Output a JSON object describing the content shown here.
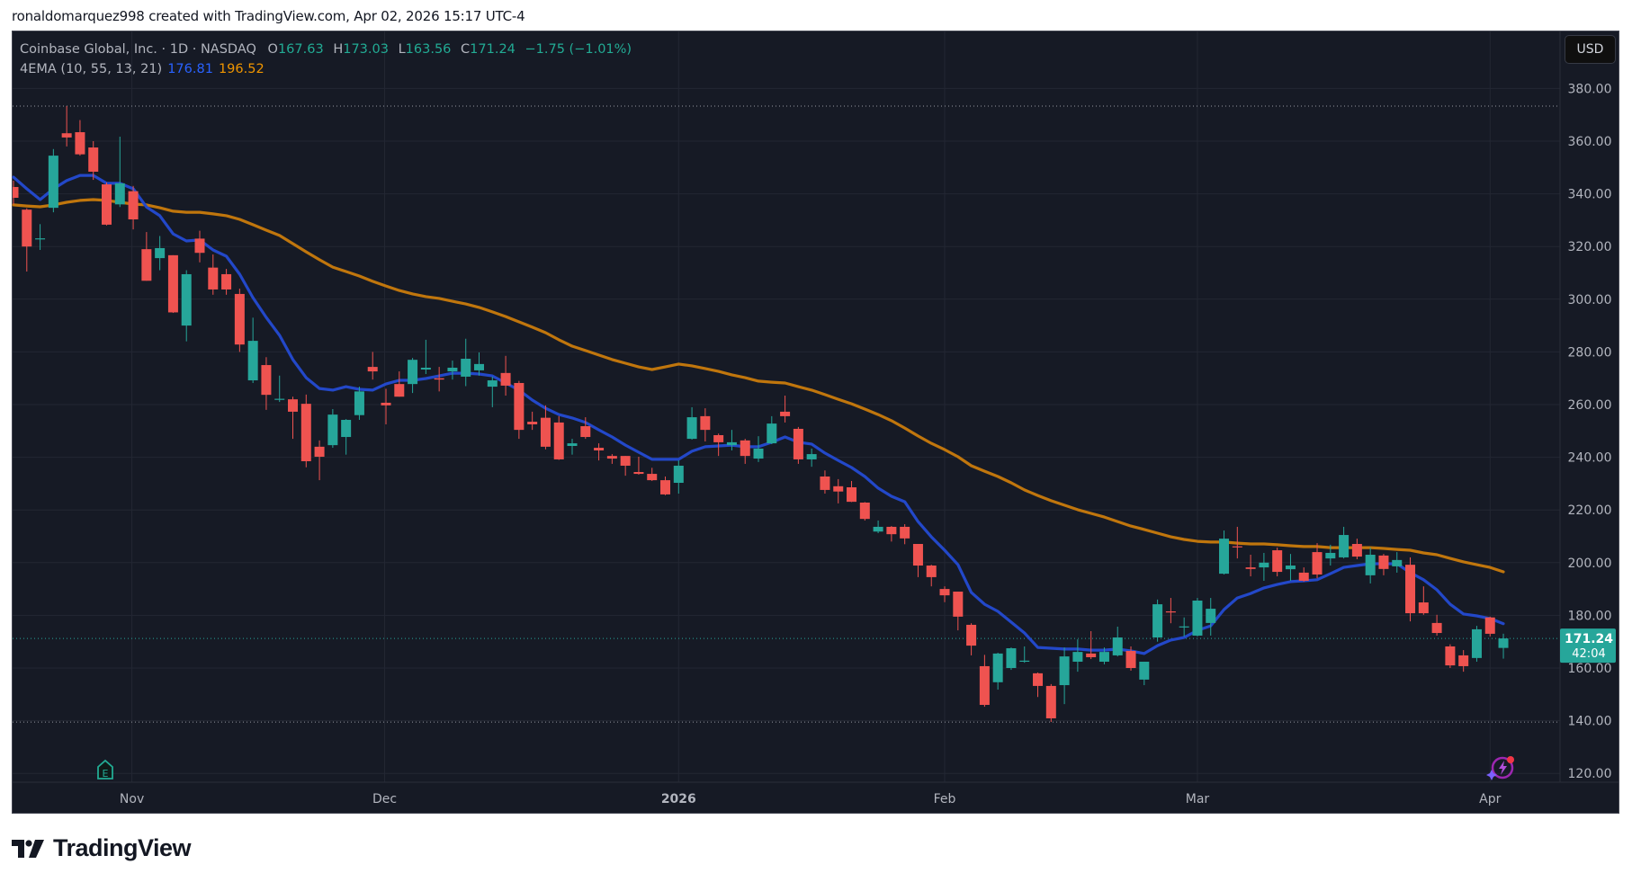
{
  "attribution": "ronaldomarquez998 created with TradingView.com, Apr 02, 2026 15:17 UTC-4",
  "legend": {
    "symbol": "Coinbase Global, Inc. · 1D · NASDAQ",
    "open_label": "O",
    "open": "167.63",
    "high_label": "H",
    "high": "173.03",
    "low_label": "L",
    "low": "163.56",
    "close_label": "C",
    "close": "171.24",
    "change": "−1.75 (−1.01%)",
    "indicator": "4EMA (10, 55, 13, 21)",
    "ema_fast_value": "176.81",
    "ema_slow_value": "196.52"
  },
  "currency_button": "USD",
  "last_price_label": {
    "price": "171.24",
    "countdown": "42:04"
  },
  "logo_text": "TradingView",
  "colors": {
    "background": "#161a25",
    "grid": "#232733",
    "up": "#26a69a",
    "down": "#ef5350",
    "ema_fast": "#2348c9",
    "ema_slow": "#c0760d",
    "axis_text": "#b2b5be",
    "last_price_bg": "#26a69a"
  },
  "chart_data": {
    "type": "candlestick",
    "title": "Coinbase Global, Inc. · 1D · NASDAQ",
    "xlabel": "",
    "ylabel": "USD",
    "ylim": [
      114,
      398
    ],
    "grid": true,
    "y_ticks": [
      120,
      140,
      160,
      180,
      200,
      220,
      240,
      260,
      280,
      300,
      320,
      340,
      360,
      380
    ],
    "x_ticks": [
      {
        "label": "Nov",
        "index": 8.9,
        "bold": false
      },
      {
        "label": "Dec",
        "index": 27.9,
        "bold": false
      },
      {
        "label": "2026",
        "index": 50,
        "bold": true
      },
      {
        "label": "Feb",
        "index": 70,
        "bold": false
      },
      {
        "label": "Mar",
        "index": 89,
        "bold": false
      },
      {
        "label": "Apr",
        "index": 111,
        "bold": false
      }
    ],
    "high_marker": 373.3,
    "low_marker": 139.5,
    "last_price": 171.24,
    "legend": [
      "EMA 10 (blue) 176.81",
      "EMA 55 (orange) 196.52"
    ],
    "candles": [
      [
        342.6,
        345,
        336,
        338.5
      ],
      [
        334,
        334.5,
        310.5,
        320
      ],
      [
        323,
        328.5,
        318.7,
        323.1
      ],
      [
        334.7,
        357,
        333,
        354.5
      ],
      [
        363,
        373.3,
        358,
        361.4
      ],
      [
        363.4,
        368,
        354.5,
        355
      ],
      [
        357.6,
        360,
        345.3,
        348.4
      ],
      [
        343.6,
        344.3,
        328,
        328.3
      ],
      [
        336,
        361.7,
        335,
        344
      ],
      [
        341,
        343,
        326.5,
        330.3
      ],
      [
        319,
        325.5,
        307,
        307
      ],
      [
        315.6,
        324,
        311,
        319.4
      ],
      [
        316.7,
        316.7,
        294.8,
        295
      ],
      [
        290,
        311,
        284,
        309.5
      ],
      [
        323,
        326,
        314,
        317.6
      ],
      [
        312,
        317,
        301.7,
        303.7
      ],
      [
        309.5,
        311.5,
        301.7,
        303.7
      ],
      [
        302,
        304,
        280,
        282.8
      ],
      [
        269.2,
        293,
        268.2,
        284.2
      ],
      [
        275,
        278,
        258,
        263.7
      ],
      [
        262,
        271,
        261,
        262.2
      ],
      [
        262,
        263,
        247,
        257.3
      ],
      [
        260.3,
        263.8,
        236.2,
        238.5
      ],
      [
        244,
        246.4,
        231.3,
        240.2
      ],
      [
        244.6,
        258.3,
        243.6,
        256.2
      ],
      [
        247.7,
        254.5,
        241,
        254.2
      ],
      [
        256,
        266.8,
        254.2,
        265
      ],
      [
        274.3,
        280,
        269.5,
        272.6
      ],
      [
        260.7,
        266,
        252.5,
        259.7
      ],
      [
        267.8,
        272.6,
        263,
        263
      ],
      [
        267.8,
        277.7,
        264.4,
        277
      ],
      [
        273.3,
        284.6,
        271.6,
        274
      ],
      [
        270,
        274.3,
        265,
        269.5
      ],
      [
        272.6,
        276.7,
        269.5,
        274
      ],
      [
        270.6,
        285,
        267,
        277.4
      ],
      [
        273,
        279.8,
        271,
        275.4
      ],
      [
        266.8,
        270.6,
        259,
        269.2
      ],
      [
        272,
        278.5,
        263.4,
        267.2
      ],
      [
        268.2,
        269,
        247,
        250.4
      ],
      [
        253.5,
        257.3,
        250.4,
        252.5
      ],
      [
        255,
        259.7,
        243,
        244
      ],
      [
        253.2,
        255.6,
        239,
        239.2
      ],
      [
        244.3,
        247,
        241,
        245.3
      ],
      [
        251.8,
        255.2,
        247,
        247.7
      ],
      [
        243.6,
        245.3,
        238.8,
        242.6
      ],
      [
        240.5,
        241.2,
        237.5,
        239.5
      ],
      [
        240.5,
        240.5,
        233,
        236.8
      ],
      [
        234.4,
        240.2,
        233.4,
        233.7
      ],
      [
        233.7,
        236,
        231,
        231.3
      ],
      [
        231.3,
        232.7,
        225.6,
        225.9
      ],
      [
        230.3,
        238.8,
        226.2,
        236.8
      ],
      [
        247,
        259,
        246.7,
        255.2
      ],
      [
        255.6,
        258.6,
        246,
        250.4
      ],
      [
        248.4,
        249,
        240.5,
        245.7
      ],
      [
        244.6,
        250.4,
        242.6,
        245.7
      ],
      [
        246.4,
        247,
        237.5,
        240.5
      ],
      [
        239.5,
        248,
        238.2,
        243.3
      ],
      [
        245.3,
        255.6,
        245,
        252.8
      ],
      [
        257.3,
        263.4,
        253.2,
        255.6
      ],
      [
        250.8,
        251.5,
        237.5,
        239.2
      ],
      [
        239.2,
        243.3,
        236.4,
        241.2
      ],
      [
        232.7,
        235,
        226.2,
        227.6
      ],
      [
        229,
        231.7,
        222.5,
        227
      ],
      [
        228.6,
        231,
        223,
        223.1
      ],
      [
        222.8,
        223,
        216,
        216.6
      ],
      [
        211.8,
        216,
        211.2,
        213.6
      ],
      [
        213.6,
        213.9,
        208,
        210.8
      ],
      [
        213.6,
        214.6,
        207,
        209.2
      ],
      [
        207.1,
        207.1,
        194.5,
        198.9
      ],
      [
        198.9,
        199.2,
        191,
        194.5
      ],
      [
        190,
        191,
        185,
        187.6
      ],
      [
        189,
        189,
        174.3,
        179.5
      ],
      [
        176.4,
        177,
        164.8,
        168.5
      ],
      [
        160.7,
        165,
        145.3,
        146
      ],
      [
        154.6,
        165.8,
        151.8,
        165.5
      ],
      [
        160,
        167.8,
        159.3,
        167.5
      ],
      [
        162.7,
        168.2,
        162,
        162.8
      ],
      [
        158,
        158.3,
        149,
        153.2
      ],
      [
        153.2,
        153.9,
        139.5,
        140.9
      ],
      [
        153.5,
        167.8,
        146.3,
        164.4
      ],
      [
        162.4,
        170.9,
        158.6,
        166.1
      ],
      [
        165.5,
        174,
        163.4,
        164.1
      ],
      [
        162.4,
        167.8,
        161.4,
        166.1
      ],
      [
        164.8,
        175.7,
        164.4,
        171.6
      ],
      [
        166.5,
        168.2,
        159,
        160
      ],
      [
        155.6,
        162.4,
        153.5,
        162.4
      ],
      [
        171.6,
        186,
        170,
        184.2
      ],
      [
        181.5,
        186.6,
        177,
        181.2
      ],
      [
        175.4,
        179.2,
        172,
        175.8
      ],
      [
        172.3,
        186.6,
        172,
        185.6
      ],
      [
        177.1,
        186.6,
        172.3,
        182.5
      ],
      [
        195.8,
        212.2,
        195.5,
        209.1
      ],
      [
        206.2,
        213.6,
        201.6,
        206
      ],
      [
        198.2,
        203,
        194.8,
        197.6
      ],
      [
        198.2,
        203.7,
        193.1,
        200
      ],
      [
        204.7,
        205.7,
        194.8,
        196.5
      ],
      [
        197.5,
        203.3,
        193.1,
        198.9
      ],
      [
        196.2,
        198.2,
        192.8,
        193.1
      ],
      [
        204,
        207.4,
        194.1,
        195.5
      ],
      [
        201.6,
        206.8,
        198.9,
        203.7
      ],
      [
        202,
        213.6,
        201.6,
        210.5
      ],
      [
        207.1,
        209.1,
        201.3,
        202.3
      ],
      [
        195.2,
        205.7,
        192.1,
        203
      ],
      [
        202.7,
        203.3,
        195.2,
        197.6
      ],
      [
        198.6,
        204,
        196.2,
        201
      ],
      [
        199.2,
        202,
        177.7,
        180.8
      ],
      [
        184.9,
        191,
        180.2,
        180.8
      ],
      [
        177.1,
        180.2,
        172.3,
        173.3
      ],
      [
        168.2,
        169,
        160,
        161
      ],
      [
        164.8,
        166.8,
        158.6,
        160.7
      ],
      [
        163.8,
        176,
        162.4,
        174.7
      ],
      [
        179.2,
        179.5,
        172,
        173
      ],
      [
        167.63,
        173.03,
        163.56,
        171.24
      ]
    ],
    "candle_format": [
      "open",
      "high",
      "low",
      "close"
    ],
    "series": [
      {
        "name": "EMA 10",
        "color": "#2348c9",
        "values": [
          346.3,
          341.9,
          337.8,
          341.9,
          345,
          347,
          347,
          344,
          344,
          341.9,
          335,
          331.7,
          324.8,
          322.1,
          322.5,
          318.7,
          316.3,
          309.5,
          300.6,
          293.1,
          286.3,
          277.1,
          270.2,
          266.1,
          265.5,
          266.8,
          265.8,
          265.5,
          267.8,
          269.2,
          269.2,
          269.9,
          270.9,
          271.9,
          271.9,
          271.6,
          270.9,
          268.2,
          265.5,
          261.7,
          258.6,
          256.2,
          254.9,
          253.2,
          250.4,
          247.7,
          244.6,
          241.9,
          239.2,
          239.2,
          239.2,
          242.3,
          244,
          244.3,
          244.6,
          244,
          244,
          245.7,
          247.7,
          245.7,
          245,
          241.6,
          238.8,
          236.1,
          232.7,
          228.3,
          225.2,
          223.1,
          215.6,
          209.8,
          204.7,
          199.2,
          188.7,
          184.2,
          181.5,
          177.4,
          173.3,
          167.8,
          167.5,
          167.2,
          167.2,
          166.8,
          166.8,
          167.2,
          166.5,
          165.5,
          168.5,
          170.6,
          171.6,
          174.3,
          176,
          182.2,
          186.6,
          188.3,
          190.4,
          191.7,
          192.8,
          193.1,
          193.5,
          195.8,
          198.2,
          198.9,
          199.6,
          199.6,
          199.6,
          196.2,
          193.5,
          189.7,
          184.2,
          180.5,
          179.8,
          178.8,
          176.81
        ]
      },
      {
        "name": "EMA 55",
        "color": "#c0760d",
        "values": [
          335.8,
          335.4,
          335.1,
          335.8,
          336.8,
          337.5,
          337.8,
          337.5,
          336.8,
          336.1,
          335.8,
          334.7,
          333.4,
          333,
          333,
          332.4,
          331.7,
          330.3,
          328.3,
          326.2,
          324.2,
          321.1,
          318,
          315,
          312.2,
          310.5,
          308.8,
          306.8,
          305,
          303.3,
          302,
          301,
          300.3,
          299.2,
          298.2,
          296.9,
          295.2,
          293.4,
          291.4,
          289.4,
          287.3,
          284.6,
          282.2,
          280.5,
          278.8,
          277.1,
          275.7,
          274.3,
          273.3,
          274.3,
          275.4,
          274.7,
          273.7,
          272.6,
          271.3,
          270.2,
          268.9,
          268.5,
          268.2,
          266.8,
          265.5,
          263.8,
          262,
          260.3,
          258.3,
          256.2,
          253.9,
          251.1,
          248.1,
          245.3,
          242.9,
          240.2,
          236.8,
          234.7,
          232.7,
          230.3,
          227.6,
          225.5,
          223.5,
          221.8,
          220.1,
          218.7,
          217.3,
          215.6,
          213.9,
          212.6,
          211.2,
          209.8,
          208.8,
          208.1,
          207.8,
          207.8,
          207.4,
          207.1,
          207.1,
          206.8,
          206.4,
          206.1,
          206.1,
          205.7,
          205.7,
          205.7,
          205.7,
          205.4,
          205,
          204.7,
          203.7,
          203,
          201.6,
          200.3,
          199.2,
          198.2,
          196.52
        ]
      }
    ]
  }
}
